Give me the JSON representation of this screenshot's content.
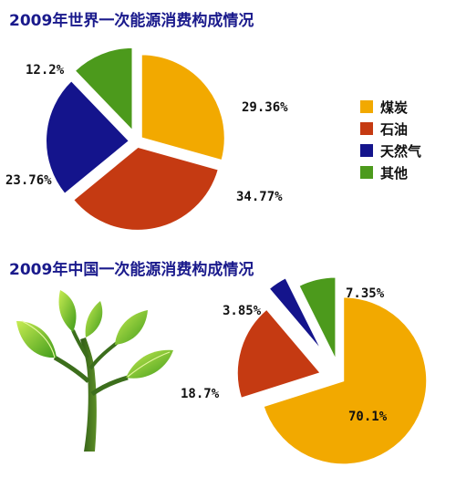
{
  "chart_data": [
    {
      "type": "pie",
      "title": "2009年世界一次能源消费构成情况",
      "categories": [
        "煤炭",
        "石油",
        "天然气",
        "其他"
      ],
      "values": [
        29.36,
        34.77,
        23.76,
        12.2
      ],
      "data_labels": [
        "29.36%",
        "34.77%",
        "23.76%",
        "12.2%"
      ],
      "colors": [
        "#f2a900",
        "#c53a12",
        "#14148c",
        "#4c9a1c"
      ],
      "legend_position": "right"
    },
    {
      "type": "pie",
      "title": "2009年中国一次能源消费构成情况",
      "categories": [
        "煤炭",
        "石油",
        "天然气",
        "其他"
      ],
      "values": [
        70.1,
        18.7,
        3.85,
        7.35
      ],
      "data_labels": [
        "70.1%",
        "18.7%",
        "3.85%",
        "7.35%"
      ],
      "colors": [
        "#f2a900",
        "#c53a12",
        "#14148c",
        "#4c9a1c"
      ]
    }
  ],
  "legend": {
    "items": [
      {
        "label": "煤炭",
        "color": "#f2a900"
      },
      {
        "label": "石油",
        "color": "#c53a12"
      },
      {
        "label": "天然气",
        "color": "#14148c"
      },
      {
        "label": "其他",
        "color": "#4c9a1c"
      }
    ]
  },
  "illustration": {
    "icon": "plant-sprout-icon"
  }
}
